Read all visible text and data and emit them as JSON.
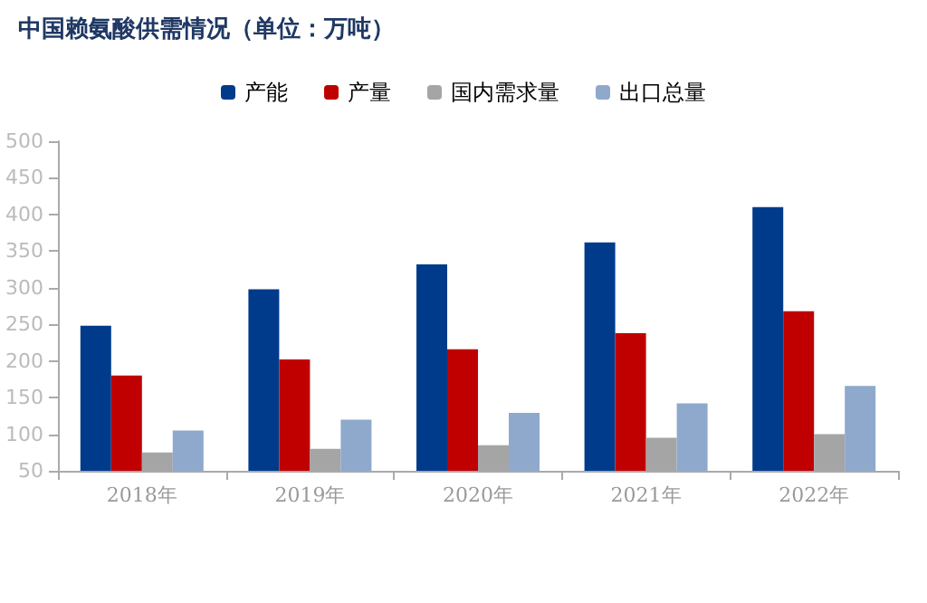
{
  "chart_data": {
    "type": "bar",
    "title": "中国赖氨酸供需情况（单位：万吨）",
    "categories": [
      "2018年",
      "2019年",
      "2020年",
      "2021年",
      "2022年"
    ],
    "series": [
      {
        "name": "产能",
        "color": "#003b8b",
        "values": [
          248,
          298,
          332,
          362,
          410
        ]
      },
      {
        "name": "产量",
        "color": "#c00000",
        "values": [
          180,
          202,
          216,
          238,
          268
        ]
      },
      {
        "name": "国内需求量",
        "color": "#a5a5a5",
        "values": [
          75,
          80,
          85,
          95,
          100
        ]
      },
      {
        "name": "出口总量",
        "color": "#8ea9cc",
        "values": [
          105,
          120,
          129,
          142,
          166
        ]
      }
    ],
    "ylim": [
      50,
      500
    ],
    "yticks": [
      50,
      100,
      150,
      200,
      250,
      300,
      350,
      400,
      450,
      500
    ],
    "grid": false,
    "legend": "top"
  }
}
